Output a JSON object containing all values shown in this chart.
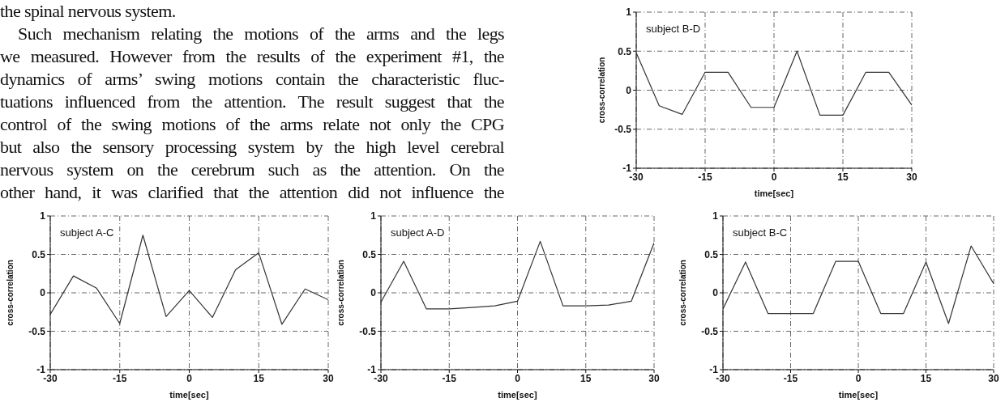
{
  "chart_data": [
    {
      "type": "other",
      "annotations": [
        "the spinal nervous system.",
        "Such mechanism relating the motions of the arms and the legs",
        "we measured. However from the results of the experiment #1, the",
        "dynamics of arms’ swing motions contain the characteristic fluc-",
        "tuations influenced from the attention. The result suggest that the",
        "control of the swing motions of the arms relate not only the CPG",
        "but also the sensory processing system by the high level cerebral",
        "nervous system on the cerebrum such as the attention. On the",
        "other hand, it was clarified that the attention did not influence the"
      ]
    },
    {
      "type": "line",
      "title": "subject B-D",
      "xlabel": "time[sec]",
      "ylabel": "cross-correlation",
      "x": [
        -30,
        -25,
        -20,
        -15,
        -10,
        -5,
        0,
        5,
        10,
        15,
        20,
        25,
        30
      ],
      "values": [
        0.48,
        -0.2,
        -0.31,
        0.23,
        0.23,
        -0.22,
        -0.22,
        0.5,
        -0.32,
        -0.32,
        0.23,
        0.23,
        -0.19
      ],
      "color": "#333333",
      "xlim": [
        -30,
        30
      ],
      "xticks": [
        -30,
        -15,
        0,
        15,
        30
      ],
      "ylim": [
        -1,
        1
      ],
      "yticks": [
        -1,
        -0.5,
        0,
        0.5,
        1
      ],
      "grid": true
    },
    {
      "type": "line",
      "title": "subject A-C",
      "xlabel": "time[sec]",
      "ylabel": "cross-correlation",
      "x": [
        -30,
        -25,
        -20,
        -15,
        -10,
        -5,
        0,
        5,
        10,
        15,
        20,
        25,
        30
      ],
      "values": [
        -0.28,
        0.22,
        0.06,
        -0.4,
        0.75,
        -0.31,
        0.03,
        -0.32,
        0.3,
        0.52,
        -0.41,
        0.05,
        -0.09
      ],
      "color": "#333333",
      "xlim": [
        -30,
        30
      ],
      "xticks": [
        -30,
        -15,
        0,
        15,
        30
      ],
      "ylim": [
        -1,
        1
      ],
      "yticks": [
        -1,
        -0.5,
        0,
        0.5,
        1
      ],
      "grid": true
    },
    {
      "type": "line",
      "title": "subject A-D",
      "xlabel": "time[sec]",
      "ylabel": "cross-correlation",
      "x": [
        -30,
        -25,
        -20,
        -15,
        -10,
        -5,
        0,
        5,
        10,
        15,
        20,
        25,
        30
      ],
      "values": [
        -0.12,
        0.41,
        -0.21,
        -0.21,
        -0.19,
        -0.17,
        -0.11,
        0.67,
        -0.17,
        -0.17,
        -0.16,
        -0.11,
        0.65
      ],
      "color": "#333333",
      "xlim": [
        -30,
        30
      ],
      "xticks": [
        -30,
        -15,
        0,
        15,
        30
      ],
      "ylim": [
        -1,
        1
      ],
      "yticks": [
        -1,
        -0.5,
        0,
        0.5,
        1
      ],
      "grid": true
    },
    {
      "type": "line",
      "title": "subject B-C",
      "xlabel": "time[sec]",
      "ylabel": "cross-correlation",
      "x": [
        -30,
        -25,
        -20,
        -15,
        -10,
        -5,
        0,
        5,
        10,
        15,
        20,
        25,
        30
      ],
      "values": [
        -0.21,
        0.4,
        -0.27,
        -0.27,
        -0.27,
        0.41,
        0.41,
        -0.27,
        -0.27,
        0.4,
        -0.4,
        0.61,
        0.12
      ],
      "color": "#333333",
      "xlim": [
        -30,
        30
      ],
      "xticks": [
        -30,
        -15,
        0,
        15,
        30
      ],
      "ylim": [
        -1,
        1
      ],
      "yticks": [
        -1,
        -0.5,
        0,
        0.5,
        1
      ],
      "grid": true
    }
  ]
}
